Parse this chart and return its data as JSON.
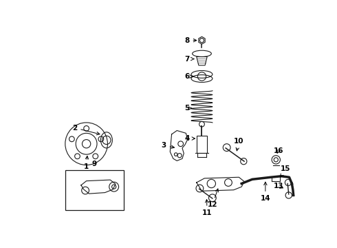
{
  "bg_color": "#ffffff",
  "line_color": "#1a1a1a",
  "figsize": [
    4.9,
    3.6
  ],
  "dpi": 100,
  "lw": 0.8
}
